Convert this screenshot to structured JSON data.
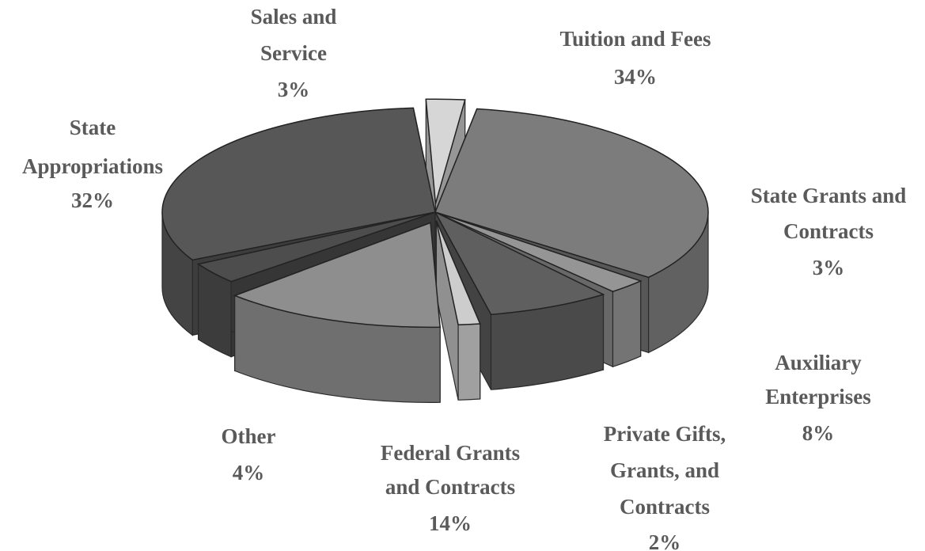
{
  "chart_data": {
    "type": "pie",
    "title": "",
    "slices": [
      {
        "label": [
          "Tuition and Fees"
        ],
        "percent_text": "34%",
        "value": 34,
        "color": "#7c7c7c"
      },
      {
        "label": [
          "State Grants and",
          "Contracts"
        ],
        "percent_text": "3%",
        "value": 3,
        "color": "#959595"
      },
      {
        "label": [
          "Auxiliary",
          "Enterprises"
        ],
        "percent_text": "8%",
        "value": 8,
        "color": "#5f5f5f"
      },
      {
        "label": [
          "Private Gifts,",
          "Grants, and",
          "Contracts"
        ],
        "percent_text": "2%",
        "value": 2,
        "color": "#cdcdcd"
      },
      {
        "label": [
          "Federal Grants",
          "and Contracts"
        ],
        "percent_text": "14%",
        "value": 14,
        "color": "#8e8e8e"
      },
      {
        "label": [
          "Other"
        ],
        "percent_text": "4%",
        "value": 4,
        "color": "#4d4d4d"
      },
      {
        "label": [
          "State",
          "Appropriations"
        ],
        "percent_text": "32%",
        "value": 32,
        "color": "#575757"
      },
      {
        "label": [
          "Sales and",
          "Service"
        ],
        "percent_text": "3%",
        "value": 3,
        "color": "#d6d6d6"
      }
    ]
  }
}
